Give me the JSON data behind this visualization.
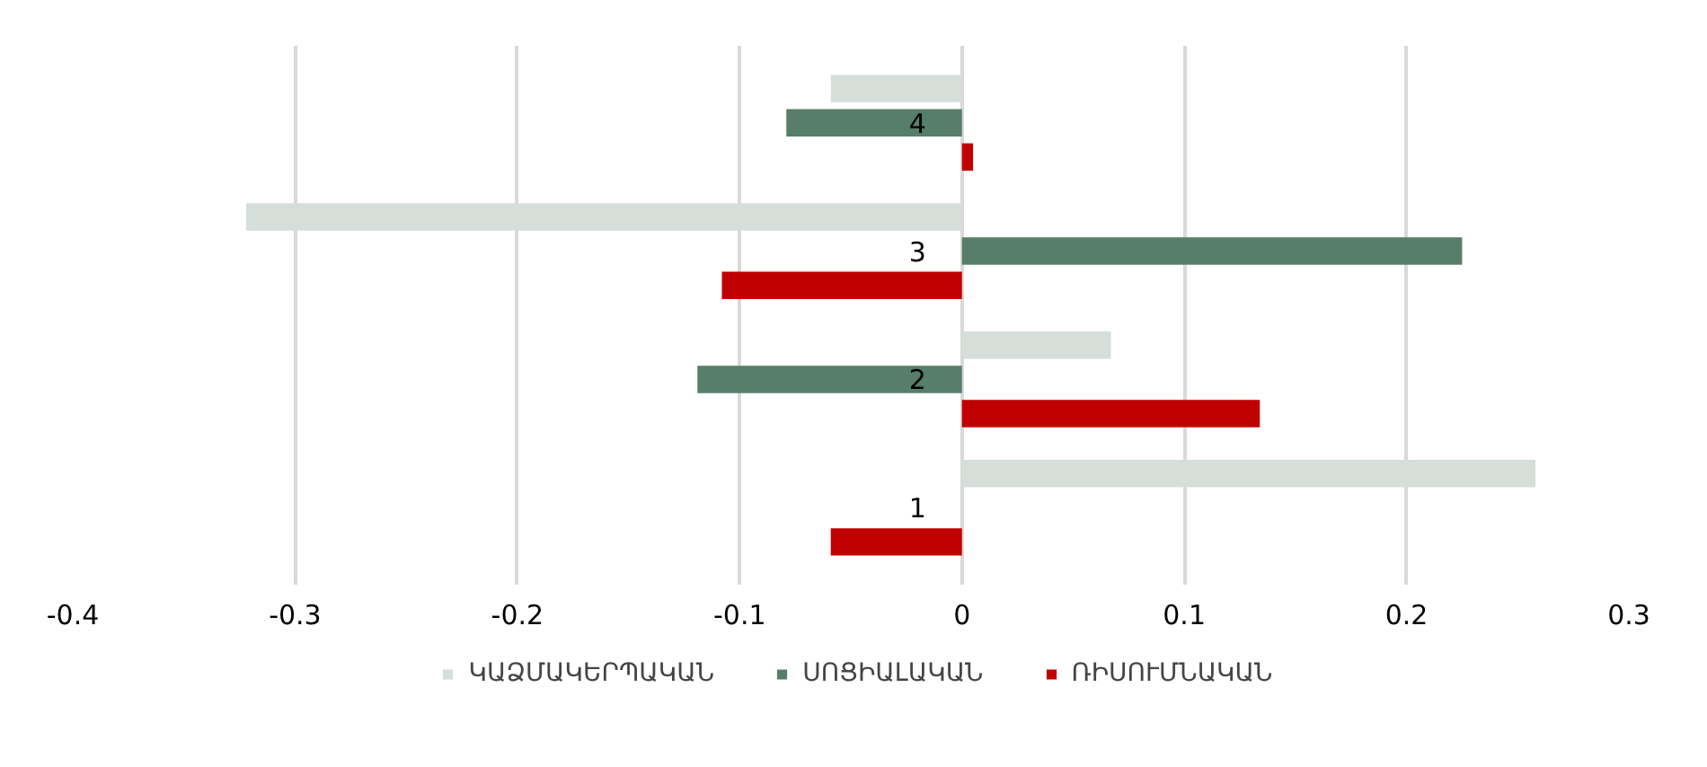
{
  "chart_data": {
    "type": "bar",
    "orientation": "horizontal",
    "categories": [
      "4",
      "3",
      "2",
      "1"
    ],
    "series": [
      {
        "name": "ԿԱՁՄԱԿԵՐՊԱԿԱՆ",
        "color": "#d5ded9",
        "values": [
          -0.059,
          -0.322,
          0.067,
          0.258
        ]
      },
      {
        "name": "ՍՈՑԻԱԼԱԿԱՆ",
        "color": "#567e6a",
        "values": [
          -0.079,
          0.225,
          -0.119,
          0
        ]
      },
      {
        "name": "ՌԻՍՈՒՄՆԱԿԱՆ",
        "color": "#c00000",
        "values": [
          0.005,
          -0.108,
          0.134,
          -0.059
        ]
      }
    ],
    "xlim": [
      -0.4,
      0.3
    ],
    "xticks": [
      -0.4,
      -0.3,
      -0.2,
      -0.1,
      0,
      0.1,
      0.2,
      0.3
    ],
    "grid": "x",
    "legend": "bottom"
  }
}
